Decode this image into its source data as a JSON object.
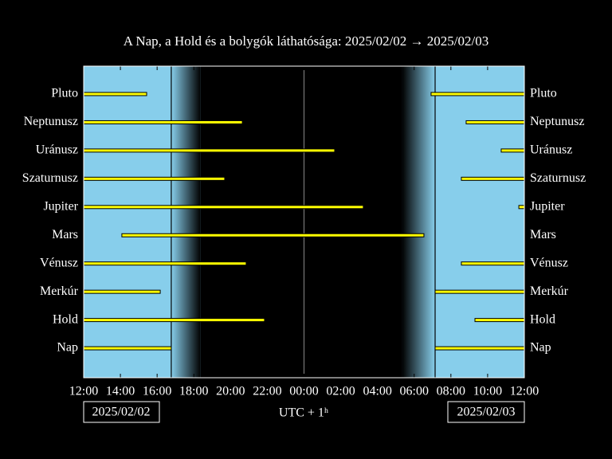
{
  "chart_data": {
    "type": "timeline",
    "title": "A Nap, a Hold és a bolygók láthatósága: 2025/02/02 → 2025/02/03",
    "x_label": "UTC + 1ʰ",
    "start_date": "2025/02/02",
    "end_date": "2025/02/03",
    "color": "#ffff00",
    "day_color": "#87ceeb",
    "night_color": "#000000",
    "xlim": [
      0,
      24
    ],
    "xticks": [
      {
        "value": 0,
        "label": "12:00"
      },
      {
        "value": 2,
        "label": "14:00"
      },
      {
        "value": 4,
        "label": "16:00"
      },
      {
        "value": 6,
        "label": "18:00"
      },
      {
        "value": 8,
        "label": "20:00"
      },
      {
        "value": 10,
        "label": "22:00"
      },
      {
        "value": 12,
        "label": "00:00"
      },
      {
        "value": 14,
        "label": "02:00"
      },
      {
        "value": 16,
        "label": "04:00"
      },
      {
        "value": 18,
        "label": "06:00"
      },
      {
        "value": 20,
        "label": "08:00"
      },
      {
        "value": 22,
        "label": "10:00"
      },
      {
        "value": 24,
        "label": "12:00"
      }
    ],
    "series": [
      {
        "name": "Pluto",
        "values": [
          [
            0,
            3.43
          ],
          [
            18.92,
            24
          ]
        ]
      },
      {
        "name": "Neptunusz",
        "values": [
          [
            0,
            8.64
          ],
          [
            20.83,
            24
          ]
        ]
      },
      {
        "name": "Uránusz",
        "values": [
          [
            0,
            13.67
          ],
          [
            22.74,
            24
          ]
        ]
      },
      {
        "name": "Szaturnusz",
        "values": [
          [
            0,
            7.68
          ],
          [
            20.57,
            24
          ]
        ]
      },
      {
        "name": "Jupiter",
        "values": [
          [
            0,
            15.23
          ],
          [
            23.7,
            24
          ]
        ]
      },
      {
        "name": "Mars",
        "values": [
          [
            2.08,
            18.53
          ]
        ]
      },
      {
        "name": "Vénusz",
        "values": [
          [
            0,
            8.85
          ],
          [
            20.57,
            24
          ]
        ]
      },
      {
        "name": "Merkúr",
        "values": [
          [
            0,
            4.17
          ],
          [
            19.14,
            24
          ]
        ]
      },
      {
        "name": "Hold",
        "values": [
          [
            0,
            9.85
          ],
          [
            21.31,
            24
          ]
        ]
      },
      {
        "name": "Nap",
        "values": [
          [
            0,
            4.77
          ],
          [
            19.14,
            24
          ]
        ]
      }
    ]
  }
}
